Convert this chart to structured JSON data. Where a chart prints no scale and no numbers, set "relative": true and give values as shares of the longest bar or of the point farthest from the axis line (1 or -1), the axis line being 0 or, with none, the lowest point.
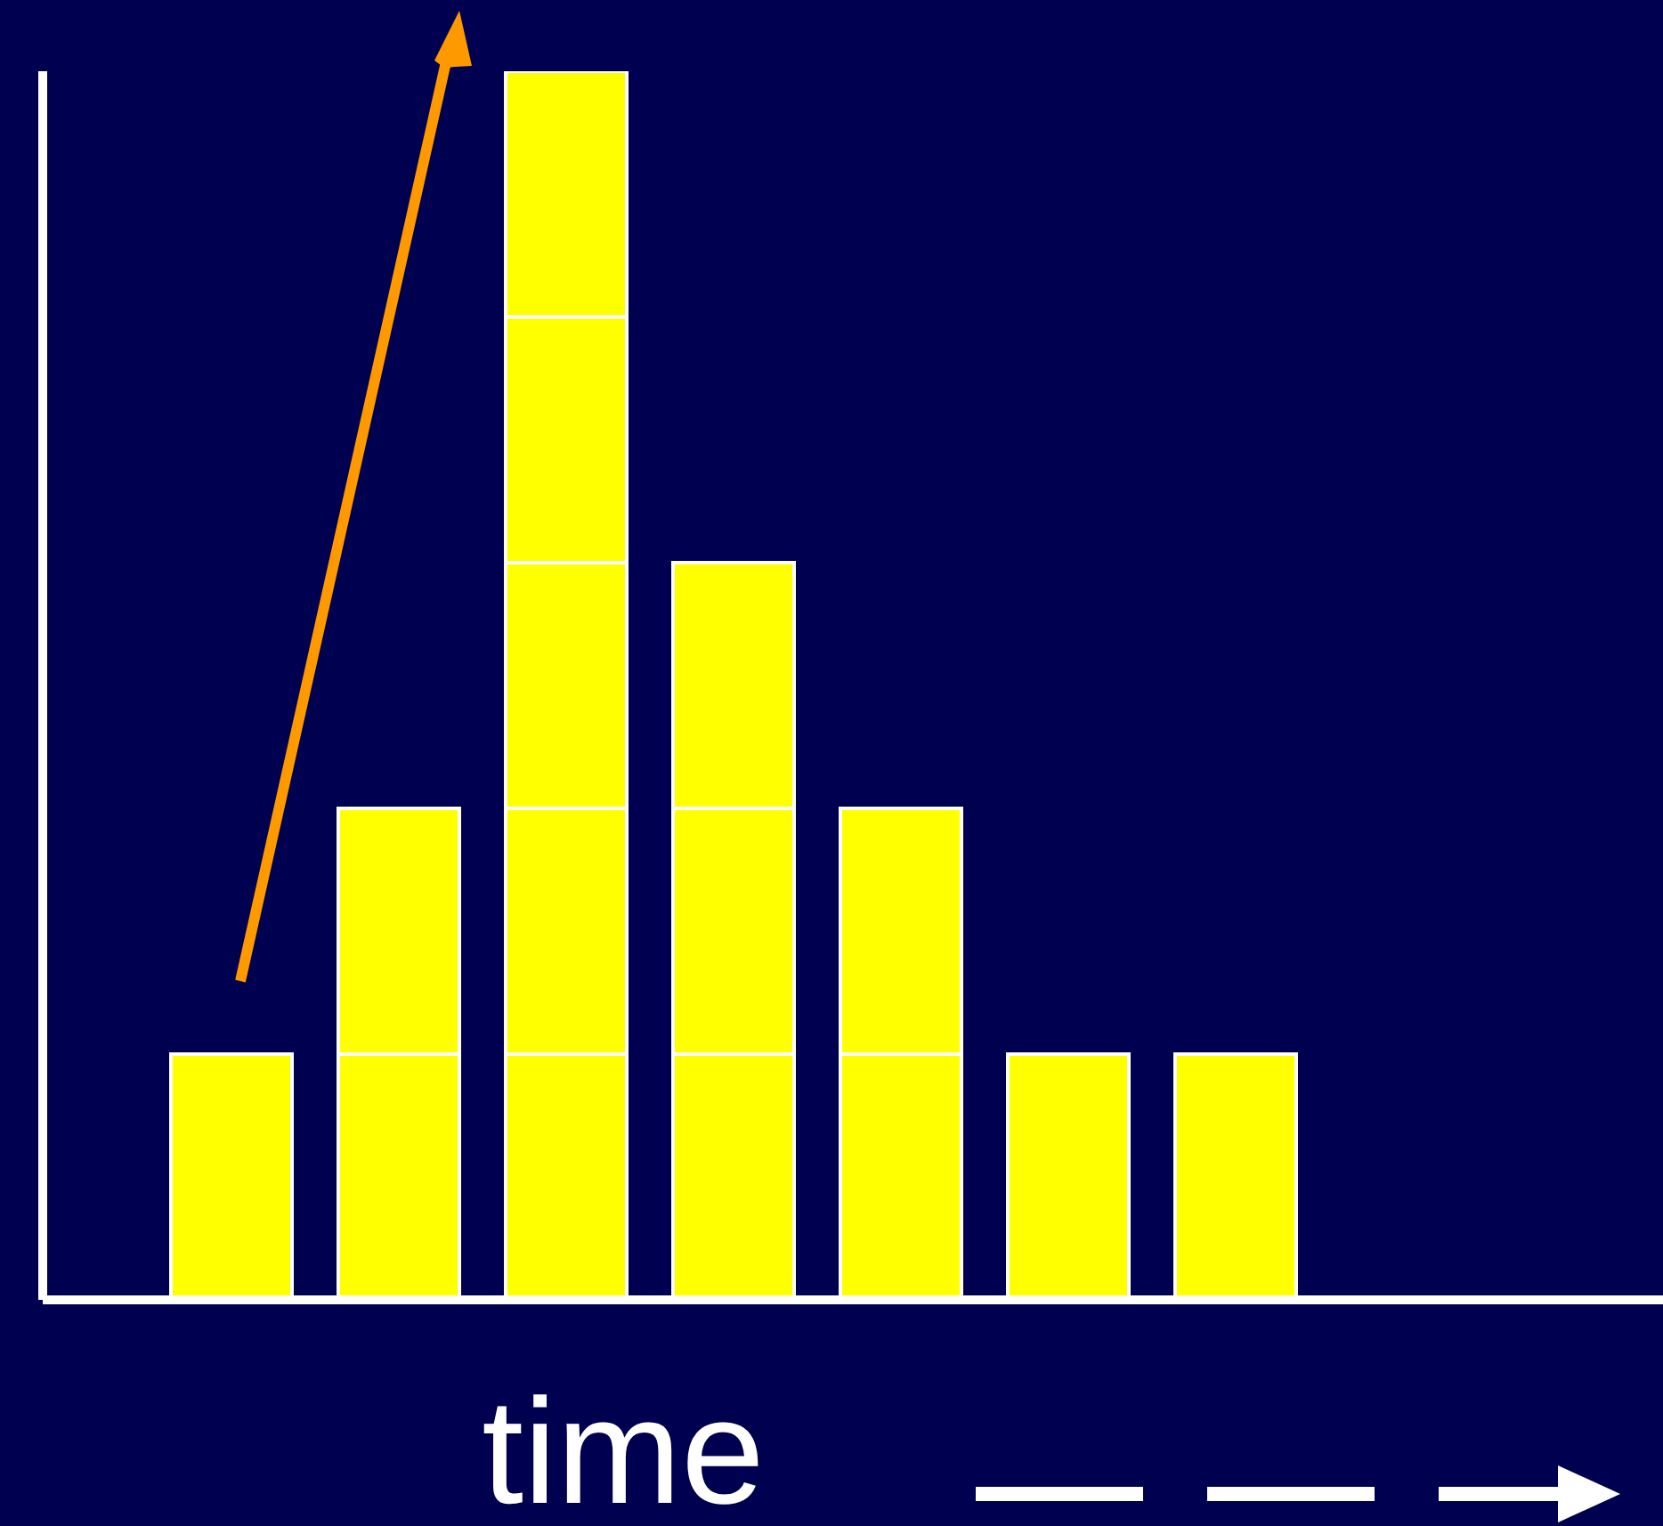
{
  "chart_data": {
    "type": "bar",
    "xlabel": "time",
    "relative": true,
    "stacked": true,
    "categories": [
      null,
      null,
      null,
      null,
      null,
      null,
      null
    ],
    "series": [
      {
        "color": "#ffff00",
        "values": [
          0.2,
          0.2,
          0.2,
          0.2,
          0.2,
          0.2,
          0.2
        ]
      },
      {
        "color": "#ffff00",
        "values": [
          null,
          0.2,
          0.2,
          0.2,
          0.2,
          null,
          null
        ]
      },
      {
        "color": "#ffff00",
        "values": [
          null,
          null,
          0.2,
          0.2,
          null,
          null,
          null
        ]
      },
      {
        "color": "#ffff00",
        "values": [
          null,
          null,
          0.2,
          null,
          null,
          null,
          null
        ]
      },
      {
        "color": "#ffff00",
        "values": [
          null,
          null,
          0.2,
          null,
          null,
          null,
          null
        ]
      }
    ]
  }
}
